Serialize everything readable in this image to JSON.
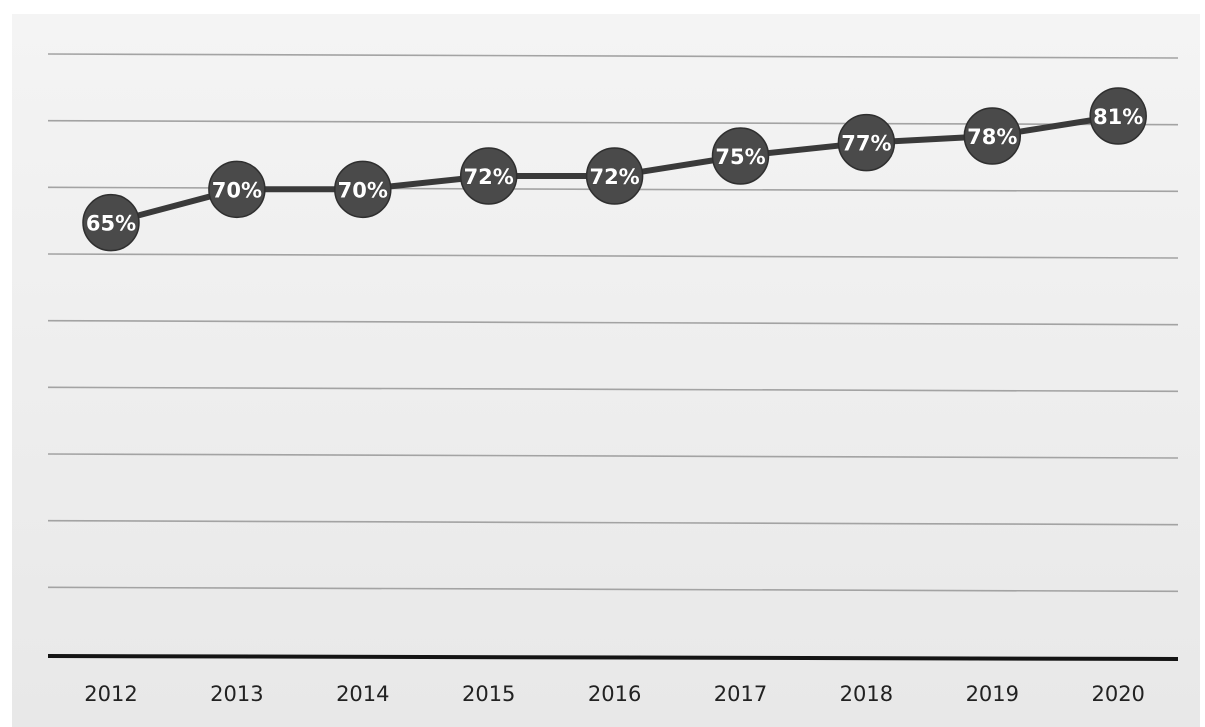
{
  "chart_data": {
    "type": "line",
    "categories": [
      "2012",
      "2013",
      "2014",
      "2015",
      "2016",
      "2017",
      "2018",
      "2019",
      "2020"
    ],
    "series": [
      {
        "values": [
          65,
          70,
          70,
          72,
          72,
          75,
          77,
          78,
          81
        ],
        "labels": [
          "65%",
          "70%",
          "70%",
          "72%",
          "72%",
          "75%",
          "77%",
          "78%",
          "81%"
        ]
      }
    ],
    "ylim": [
      0,
      90
    ],
    "grid": true,
    "legend": "none",
    "colors": {
      "background": "#ededed",
      "line": "#3a3a3a",
      "marker": "#4a4a4a",
      "label": "#ffffff",
      "baseline": "#141414",
      "grid": "#a3a3a3"
    }
  }
}
